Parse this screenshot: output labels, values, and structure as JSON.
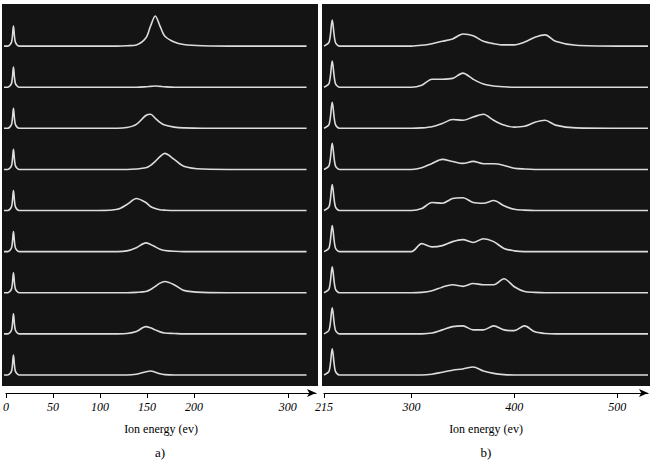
{
  "chart_data": [
    {
      "type": "line",
      "title": "a)",
      "xlabel": "Ion energy (ev)",
      "x": [
        0,
        4,
        8,
        10,
        12,
        16,
        30,
        60,
        100,
        120,
        130,
        140,
        150,
        155,
        160,
        165,
        170,
        180,
        190,
        210,
        250,
        320
      ],
      "xlim": [
        0,
        330
      ],
      "xticks": [
        0,
        50,
        100,
        150,
        200,
        300
      ],
      "ylim": [
        0,
        1
      ],
      "tick_labels": "x",
      "color": "#dcdcdc",
      "series": [
        {
          "values": [
            0.1,
            0.1,
            0.2,
            0.6,
            0.2,
            0.1,
            0.1,
            0.1,
            0.1,
            0.1,
            0.11,
            0.13,
            0.3,
            0.6,
            0.85,
            0.6,
            0.35,
            0.2,
            0.14,
            0.11,
            0.1,
            0.1
          ]
        },
        {
          "values": [
            0.1,
            0.1,
            0.2,
            0.6,
            0.2,
            0.1,
            0.1,
            0.1,
            0.1,
            0.1,
            0.1,
            0.1,
            0.11,
            0.12,
            0.13,
            0.12,
            0.11,
            0.1,
            0.1,
            0.1,
            0.1,
            0.1
          ]
        },
        {
          "values": [
            0.1,
            0.1,
            0.2,
            0.6,
            0.2,
            0.1,
            0.1,
            0.1,
            0.1,
            0.1,
            0.12,
            0.2,
            0.42,
            0.45,
            0.35,
            0.25,
            0.18,
            0.13,
            0.11,
            0.1,
            0.1,
            0.1
          ]
        },
        {
          "values": [
            0.1,
            0.1,
            0.2,
            0.6,
            0.2,
            0.1,
            0.1,
            0.1,
            0.1,
            0.1,
            0.1,
            0.11,
            0.14,
            0.2,
            0.3,
            0.42,
            0.5,
            0.35,
            0.18,
            0.11,
            0.1,
            0.1
          ]
        },
        {
          "values": [
            0.1,
            0.1,
            0.2,
            0.6,
            0.2,
            0.1,
            0.1,
            0.1,
            0.1,
            0.13,
            0.25,
            0.4,
            0.3,
            0.2,
            0.15,
            0.12,
            0.11,
            0.1,
            0.1,
            0.1,
            0.1,
            0.1
          ]
        },
        {
          "values": [
            0.1,
            0.1,
            0.2,
            0.6,
            0.2,
            0.1,
            0.1,
            0.1,
            0.1,
            0.1,
            0.12,
            0.2,
            0.32,
            0.28,
            0.22,
            0.16,
            0.13,
            0.11,
            0.1,
            0.1,
            0.1,
            0.1
          ]
        },
        {
          "values": [
            0.1,
            0.1,
            0.2,
            0.6,
            0.2,
            0.1,
            0.1,
            0.1,
            0.1,
            0.1,
            0.1,
            0.11,
            0.13,
            0.18,
            0.26,
            0.34,
            0.38,
            0.3,
            0.16,
            0.11,
            0.1,
            0.1
          ]
        },
        {
          "values": [
            0.1,
            0.1,
            0.2,
            0.6,
            0.2,
            0.1,
            0.1,
            0.1,
            0.1,
            0.1,
            0.11,
            0.16,
            0.28,
            0.25,
            0.2,
            0.15,
            0.12,
            0.11,
            0.1,
            0.1,
            0.1,
            0.1
          ]
        },
        {
          "values": [
            0.1,
            0.1,
            0.2,
            0.6,
            0.2,
            0.1,
            0.1,
            0.1,
            0.1,
            0.1,
            0.1,
            0.12,
            0.18,
            0.2,
            0.17,
            0.13,
            0.11,
            0.1,
            0.1,
            0.1,
            0.1,
            0.1
          ]
        }
      ]
    },
    {
      "type": "line",
      "title": "b)",
      "xlabel": "Ion energy (ev)",
      "x": [
        215,
        220,
        223,
        226,
        230,
        240,
        270,
        290,
        300,
        310,
        320,
        330,
        340,
        350,
        360,
        370,
        380,
        390,
        400,
        410,
        420,
        430,
        440,
        460,
        500,
        530
      ],
      "xlim": [
        215,
        530
      ],
      "xticks": [
        215,
        300,
        400,
        500
      ],
      "ylim": [
        0,
        1
      ],
      "tick_labels": "x",
      "color": "#dcdcdc",
      "series": [
        {
          "values": [
            0.1,
            0.2,
            0.75,
            0.2,
            0.1,
            0.1,
            0.1,
            0.1,
            0.1,
            0.12,
            0.16,
            0.22,
            0.28,
            0.4,
            0.36,
            0.22,
            0.16,
            0.13,
            0.13,
            0.2,
            0.32,
            0.38,
            0.22,
            0.12,
            0.1,
            0.1
          ]
        },
        {
          "values": [
            0.1,
            0.2,
            0.75,
            0.2,
            0.1,
            0.1,
            0.1,
            0.1,
            0.1,
            0.15,
            0.3,
            0.3,
            0.32,
            0.45,
            0.3,
            0.18,
            0.13,
            0.11,
            0.1,
            0.1,
            0.1,
            0.1,
            0.1,
            0.1,
            0.1,
            0.1
          ]
        },
        {
          "values": [
            0.1,
            0.2,
            0.75,
            0.2,
            0.1,
            0.1,
            0.1,
            0.1,
            0.1,
            0.11,
            0.14,
            0.22,
            0.32,
            0.3,
            0.38,
            0.45,
            0.3,
            0.18,
            0.13,
            0.15,
            0.25,
            0.3,
            0.18,
            0.11,
            0.1,
            0.1
          ]
        },
        {
          "values": [
            0.1,
            0.2,
            0.75,
            0.2,
            0.1,
            0.1,
            0.1,
            0.1,
            0.1,
            0.14,
            0.25,
            0.35,
            0.3,
            0.25,
            0.3,
            0.24,
            0.24,
            0.2,
            0.13,
            0.11,
            0.1,
            0.1,
            0.1,
            0.1,
            0.1,
            0.1
          ]
        },
        {
          "values": [
            0.1,
            0.2,
            0.75,
            0.2,
            0.1,
            0.1,
            0.1,
            0.1,
            0.1,
            0.15,
            0.3,
            0.28,
            0.4,
            0.42,
            0.3,
            0.28,
            0.35,
            0.22,
            0.13,
            0.11,
            0.1,
            0.1,
            0.1,
            0.1,
            0.1,
            0.1
          ]
        },
        {
          "values": [
            0.1,
            0.2,
            0.75,
            0.2,
            0.1,
            0.1,
            0.1,
            0.1,
            0.1,
            0.3,
            0.22,
            0.25,
            0.35,
            0.4,
            0.33,
            0.42,
            0.35,
            0.18,
            0.12,
            0.1,
            0.1,
            0.1,
            0.1,
            0.1,
            0.1,
            0.1
          ]
        },
        {
          "values": [
            0.1,
            0.2,
            0.75,
            0.2,
            0.1,
            0.1,
            0.1,
            0.1,
            0.1,
            0.11,
            0.15,
            0.24,
            0.3,
            0.26,
            0.33,
            0.3,
            0.3,
            0.45,
            0.25,
            0.13,
            0.11,
            0.1,
            0.1,
            0.1,
            0.1,
            0.1
          ]
        },
        {
          "values": [
            0.1,
            0.2,
            0.75,
            0.2,
            0.1,
            0.1,
            0.1,
            0.1,
            0.1,
            0.1,
            0.12,
            0.2,
            0.28,
            0.3,
            0.2,
            0.2,
            0.3,
            0.2,
            0.18,
            0.3,
            0.15,
            0.11,
            0.1,
            0.1,
            0.1,
            0.1
          ]
        },
        {
          "values": [
            0.1,
            0.2,
            0.75,
            0.2,
            0.1,
            0.1,
            0.1,
            0.1,
            0.1,
            0.1,
            0.12,
            0.17,
            0.22,
            0.25,
            0.3,
            0.2,
            0.14,
            0.11,
            0.1,
            0.1,
            0.1,
            0.1,
            0.1,
            0.1,
            0.1,
            0.1
          ]
        }
      ]
    }
  ]
}
